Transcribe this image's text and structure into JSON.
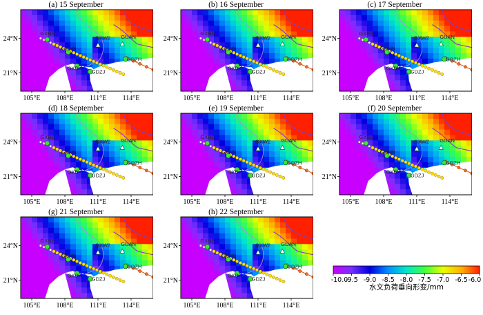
{
  "panels": [
    {
      "title": "(a) 15 September"
    },
    {
      "title": "(b) 16 September"
    },
    {
      "title": "(c) 17 September"
    },
    {
      "title": "(d) 18 September"
    },
    {
      "title": "(e) 19 September"
    },
    {
      "title": "(f) 20 September"
    },
    {
      "title": "(g) 21 September"
    },
    {
      "title": "(h) 22 September"
    }
  ],
  "map": {
    "lon_ticks": [
      "105°E",
      "108°E",
      "111°E",
      "114°E"
    ],
    "lat_ticks": [
      "24°N",
      "21°N"
    ],
    "stations": [
      "GXBS",
      "GXW2",
      "GUAN",
      "GXNN",
      "GDZH",
      "GXBH",
      "GDZJ"
    ]
  },
  "colorbar": {
    "title": "水文负荷垂向形变/mm",
    "tick_labels": [
      "-10.0",
      "-9.5",
      "-9.0",
      "-8.5",
      "-8.0",
      "-7.5",
      "-7.0",
      "-6.5",
      "-6.0"
    ],
    "range": [
      -10.0,
      -6.0
    ],
    "colors": [
      "#c800ff",
      "#7a30ff",
      "#0000e0",
      "#0090ff",
      "#00e8c8",
      "#40ff40",
      "#e8ff00",
      "#ffb000",
      "#ff2000"
    ]
  }
}
